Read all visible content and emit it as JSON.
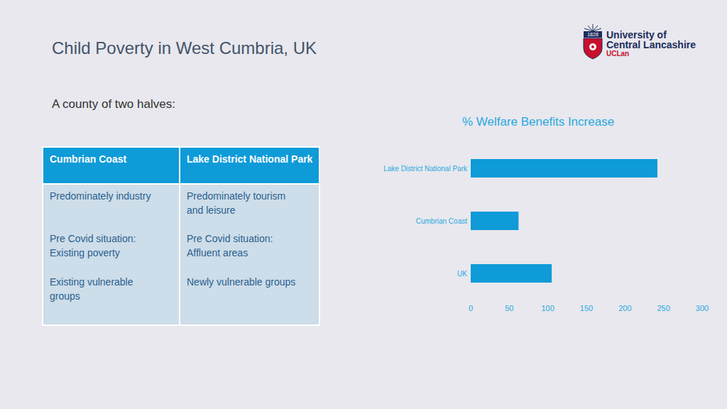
{
  "header": {
    "title": "Child Poverty in West Cumbria, UK",
    "subtitle": "A county of two halves:"
  },
  "logo": {
    "year": "1828",
    "lines": [
      "University of",
      "Central Lancashire"
    ],
    "short": "UCLan"
  },
  "table": {
    "header": [
      "Cumbrian Coast",
      "Lake District National Park"
    ],
    "rows": [
      [
        [
          "Predominately industry"
        ],
        [
          "Predominately tourism",
          "and leisure"
        ]
      ],
      [
        [
          "Pre Covid situation:",
          "Existing poverty"
        ],
        [
          "Pre Covid situation:",
          "Affluent areas"
        ]
      ],
      [
        [
          "Existing vulnerable",
          "groups"
        ],
        [
          "Newly vulnerable groups"
        ]
      ]
    ]
  },
  "chart_data": {
    "type": "bar",
    "title": "% Welfare Benefits Increase",
    "orientation": "horizontal",
    "categories": [
      "Lake District National Park",
      "Cumbrian Coast",
      "UK"
    ],
    "values": [
      242,
      62,
      105
    ],
    "color": "#0e9bd8",
    "xlim": [
      0,
      300
    ],
    "xticks": [
      0,
      50,
      100,
      150,
      200,
      250,
      300
    ],
    "grid": false
  }
}
